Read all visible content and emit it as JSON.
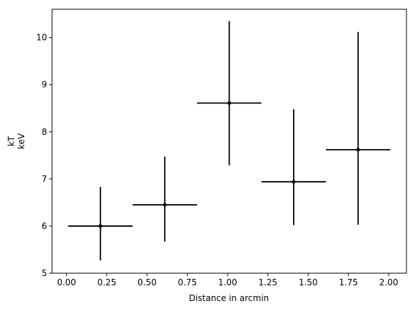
{
  "chart_data": {
    "type": "errorbar",
    "xlabel": "Distance in arcmin",
    "ylabel": [
      "kT",
      "keV"
    ],
    "x": [
      0.21,
      0.61,
      1.01,
      1.41,
      1.81
    ],
    "xerr": [
      0.2,
      0.2,
      0.2,
      0.2,
      0.2
    ],
    "values": [
      6.0,
      6.45,
      8.61,
      6.94,
      7.62
    ],
    "yerr": [
      [
        0.73,
        0.78,
        1.32,
        0.92,
        1.59
      ],
      [
        0.83,
        1.02,
        1.74,
        1.54,
        2.5
      ]
    ],
    "color": "#000000",
    "xlim": [
      -0.09,
      2.11
    ],
    "ylim": [
      5,
      10.6
    ],
    "xticks": [
      {
        "value": 0,
        "label": "0.00"
      },
      {
        "value": 0.25,
        "label": "0.25"
      },
      {
        "value": 0.5,
        "label": "0.50"
      },
      {
        "value": 0.75,
        "label": "0.75"
      },
      {
        "value": 1,
        "label": "1.00"
      },
      {
        "value": 1.25,
        "label": "1.25"
      },
      {
        "value": 1.5,
        "label": "1.50"
      },
      {
        "value": 1.75,
        "label": "1.75"
      },
      {
        "value": 2,
        "label": "2.00"
      }
    ],
    "yticks": [
      5,
      6,
      7,
      8,
      9,
      10
    ]
  }
}
